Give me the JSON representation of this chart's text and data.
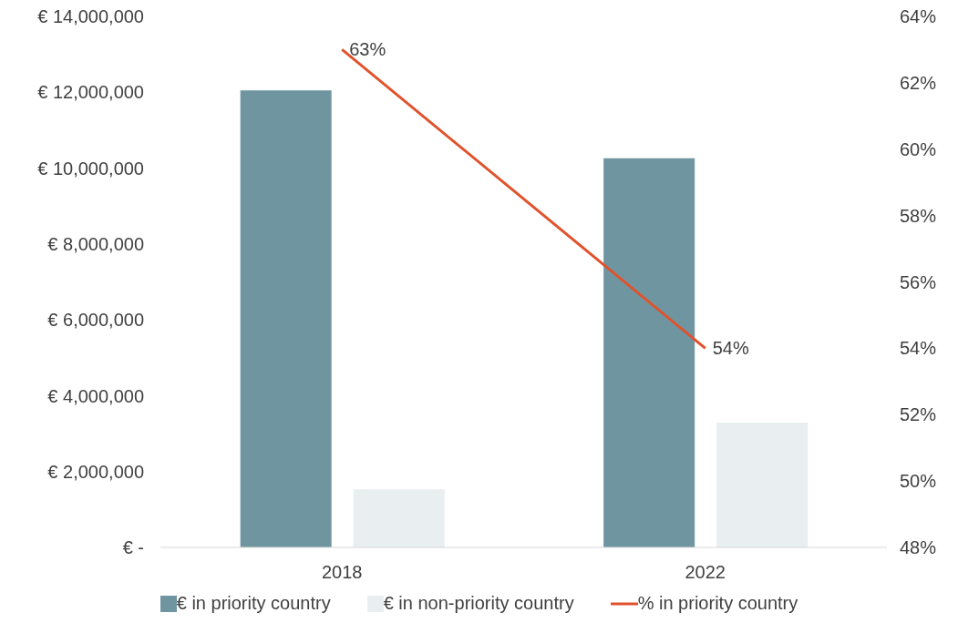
{
  "chart_data": {
    "type": "bar",
    "categories": [
      "2018",
      "2022"
    ],
    "series": [
      {
        "name": "€ in priority country",
        "color": "#6f96a0",
        "values": [
          12050000,
          10260000
        ]
      },
      {
        "name": "€ in non-priority country",
        "color": "#e9eef0",
        "values": [
          1530000,
          3290000
        ]
      },
      {
        "name": "% in priority country",
        "type": "line",
        "axis": "y2",
        "color": "#e0522c",
        "values": [
          63,
          54
        ],
        "value_labels": [
          "63%",
          "54%"
        ]
      }
    ],
    "ylim": [
      0,
      14000000
    ],
    "yticks": [
      {
        "value": 0,
        "label": "€ -"
      },
      {
        "value": 2000000,
        "label": "€ 2,000,000"
      },
      {
        "value": 4000000,
        "label": "€ 4,000,000"
      },
      {
        "value": 6000000,
        "label": "€ 6,000,000"
      },
      {
        "value": 8000000,
        "label": "€ 8,000,000"
      },
      {
        "value": 10000000,
        "label": "€ 10,000,000"
      },
      {
        "value": 12000000,
        "label": "€ 12,000,000"
      },
      {
        "value": 14000000,
        "label": "€ 14,000,000"
      }
    ],
    "y2lim": [
      48,
      64
    ],
    "y2ticks": [
      {
        "value": 48,
        "label": "48%"
      },
      {
        "value": 50,
        "label": "50%"
      },
      {
        "value": 52,
        "label": "52%"
      },
      {
        "value": 54,
        "label": "54%"
      },
      {
        "value": 56,
        "label": "56%"
      },
      {
        "value": 58,
        "label": "58%"
      },
      {
        "value": 60,
        "label": "60%"
      },
      {
        "value": 62,
        "label": "62%"
      },
      {
        "value": 64,
        "label": "64%"
      }
    ],
    "grid": false,
    "legend": "bottom",
    "marker": "none",
    "line_style": "solid"
  }
}
